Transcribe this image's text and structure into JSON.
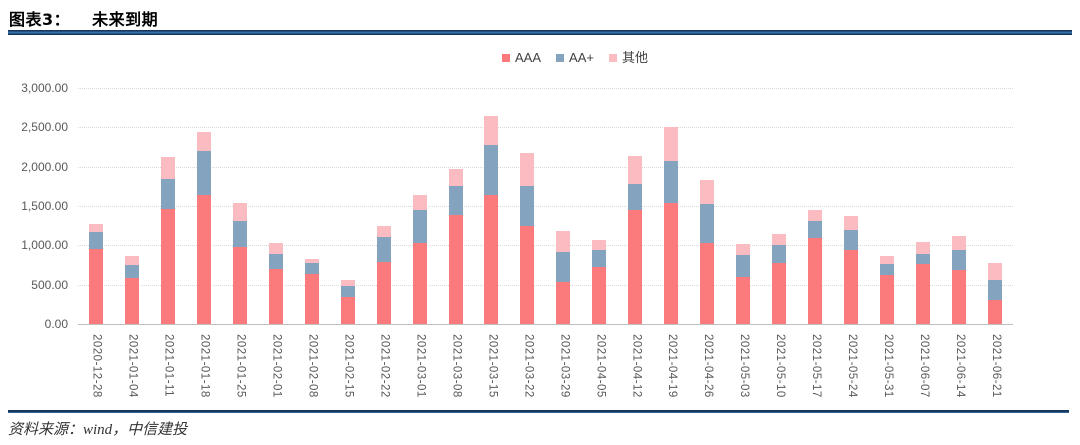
{
  "header": {
    "figure_label": "图表3：",
    "title": "未来到期"
  },
  "footer": {
    "source": "资料来源：wind，中信建投"
  },
  "chart_data": {
    "type": "bar",
    "stacked": true,
    "title": "未来到期",
    "xlabel": "",
    "ylabel": "",
    "ylim": [
      0,
      3000
    ],
    "ytick_step": 500,
    "ytick_labels_top_to_bottom": [
      "3,000.00",
      "2,500.00",
      "2,000.00",
      "1,500.00",
      "1,000.00",
      "500.00",
      "0.00"
    ],
    "grid": "horizontal-dotted",
    "legend_position": "top-center",
    "categories": [
      "2020-12-28",
      "2021-01-04",
      "2021-01-11",
      "2021-01-18",
      "2021-01-25",
      "2021-02-01",
      "2021-02-08",
      "2021-02-15",
      "2021-02-22",
      "2021-03-01",
      "2021-03-08",
      "2021-03-15",
      "2021-03-22",
      "2021-03-29",
      "2021-04-05",
      "2021-04-12",
      "2021-04-19",
      "2021-04-26",
      "2021-05-03",
      "2021-05-10",
      "2021-05-17",
      "2021-05-24",
      "2021-05-31",
      "2021-06-07",
      "2021-06-14",
      "2021-06-21"
    ],
    "series": [
      {
        "name": "AAA",
        "color": "#FB7B7D",
        "values": [
          950,
          590,
          1460,
          1645,
          985,
          705,
          640,
          345,
          785,
          1030,
          1385,
          1645,
          1240,
          535,
          725,
          1445,
          1540,
          1030,
          600,
          780,
          1090,
          945,
          620,
          760,
          690,
          310
        ]
      },
      {
        "name": "AA+",
        "color": "#84A3BF",
        "values": [
          225,
          165,
          380,
          550,
          325,
          190,
          135,
          135,
          315,
          425,
          370,
          625,
          510,
          385,
          215,
          335,
          535,
          495,
          280,
          230,
          225,
          250,
          145,
          135,
          245,
          255
        ]
      },
      {
        "name": "其他",
        "color": "#FBBCC1",
        "values": [
          100,
          115,
          285,
          245,
          230,
          140,
          55,
          75,
          140,
          190,
          210,
          380,
          420,
          265,
          125,
          355,
          425,
          310,
          140,
          140,
          130,
          180,
          100,
          145,
          180,
          205
        ]
      }
    ],
    "colors": {
      "grid": "#D9D9D9",
      "axis": "#BFBFBF",
      "tick_text": "#595959",
      "legend_text": "#404040",
      "header_rule": "#17375E",
      "footer_rule": "#17375E"
    }
  }
}
